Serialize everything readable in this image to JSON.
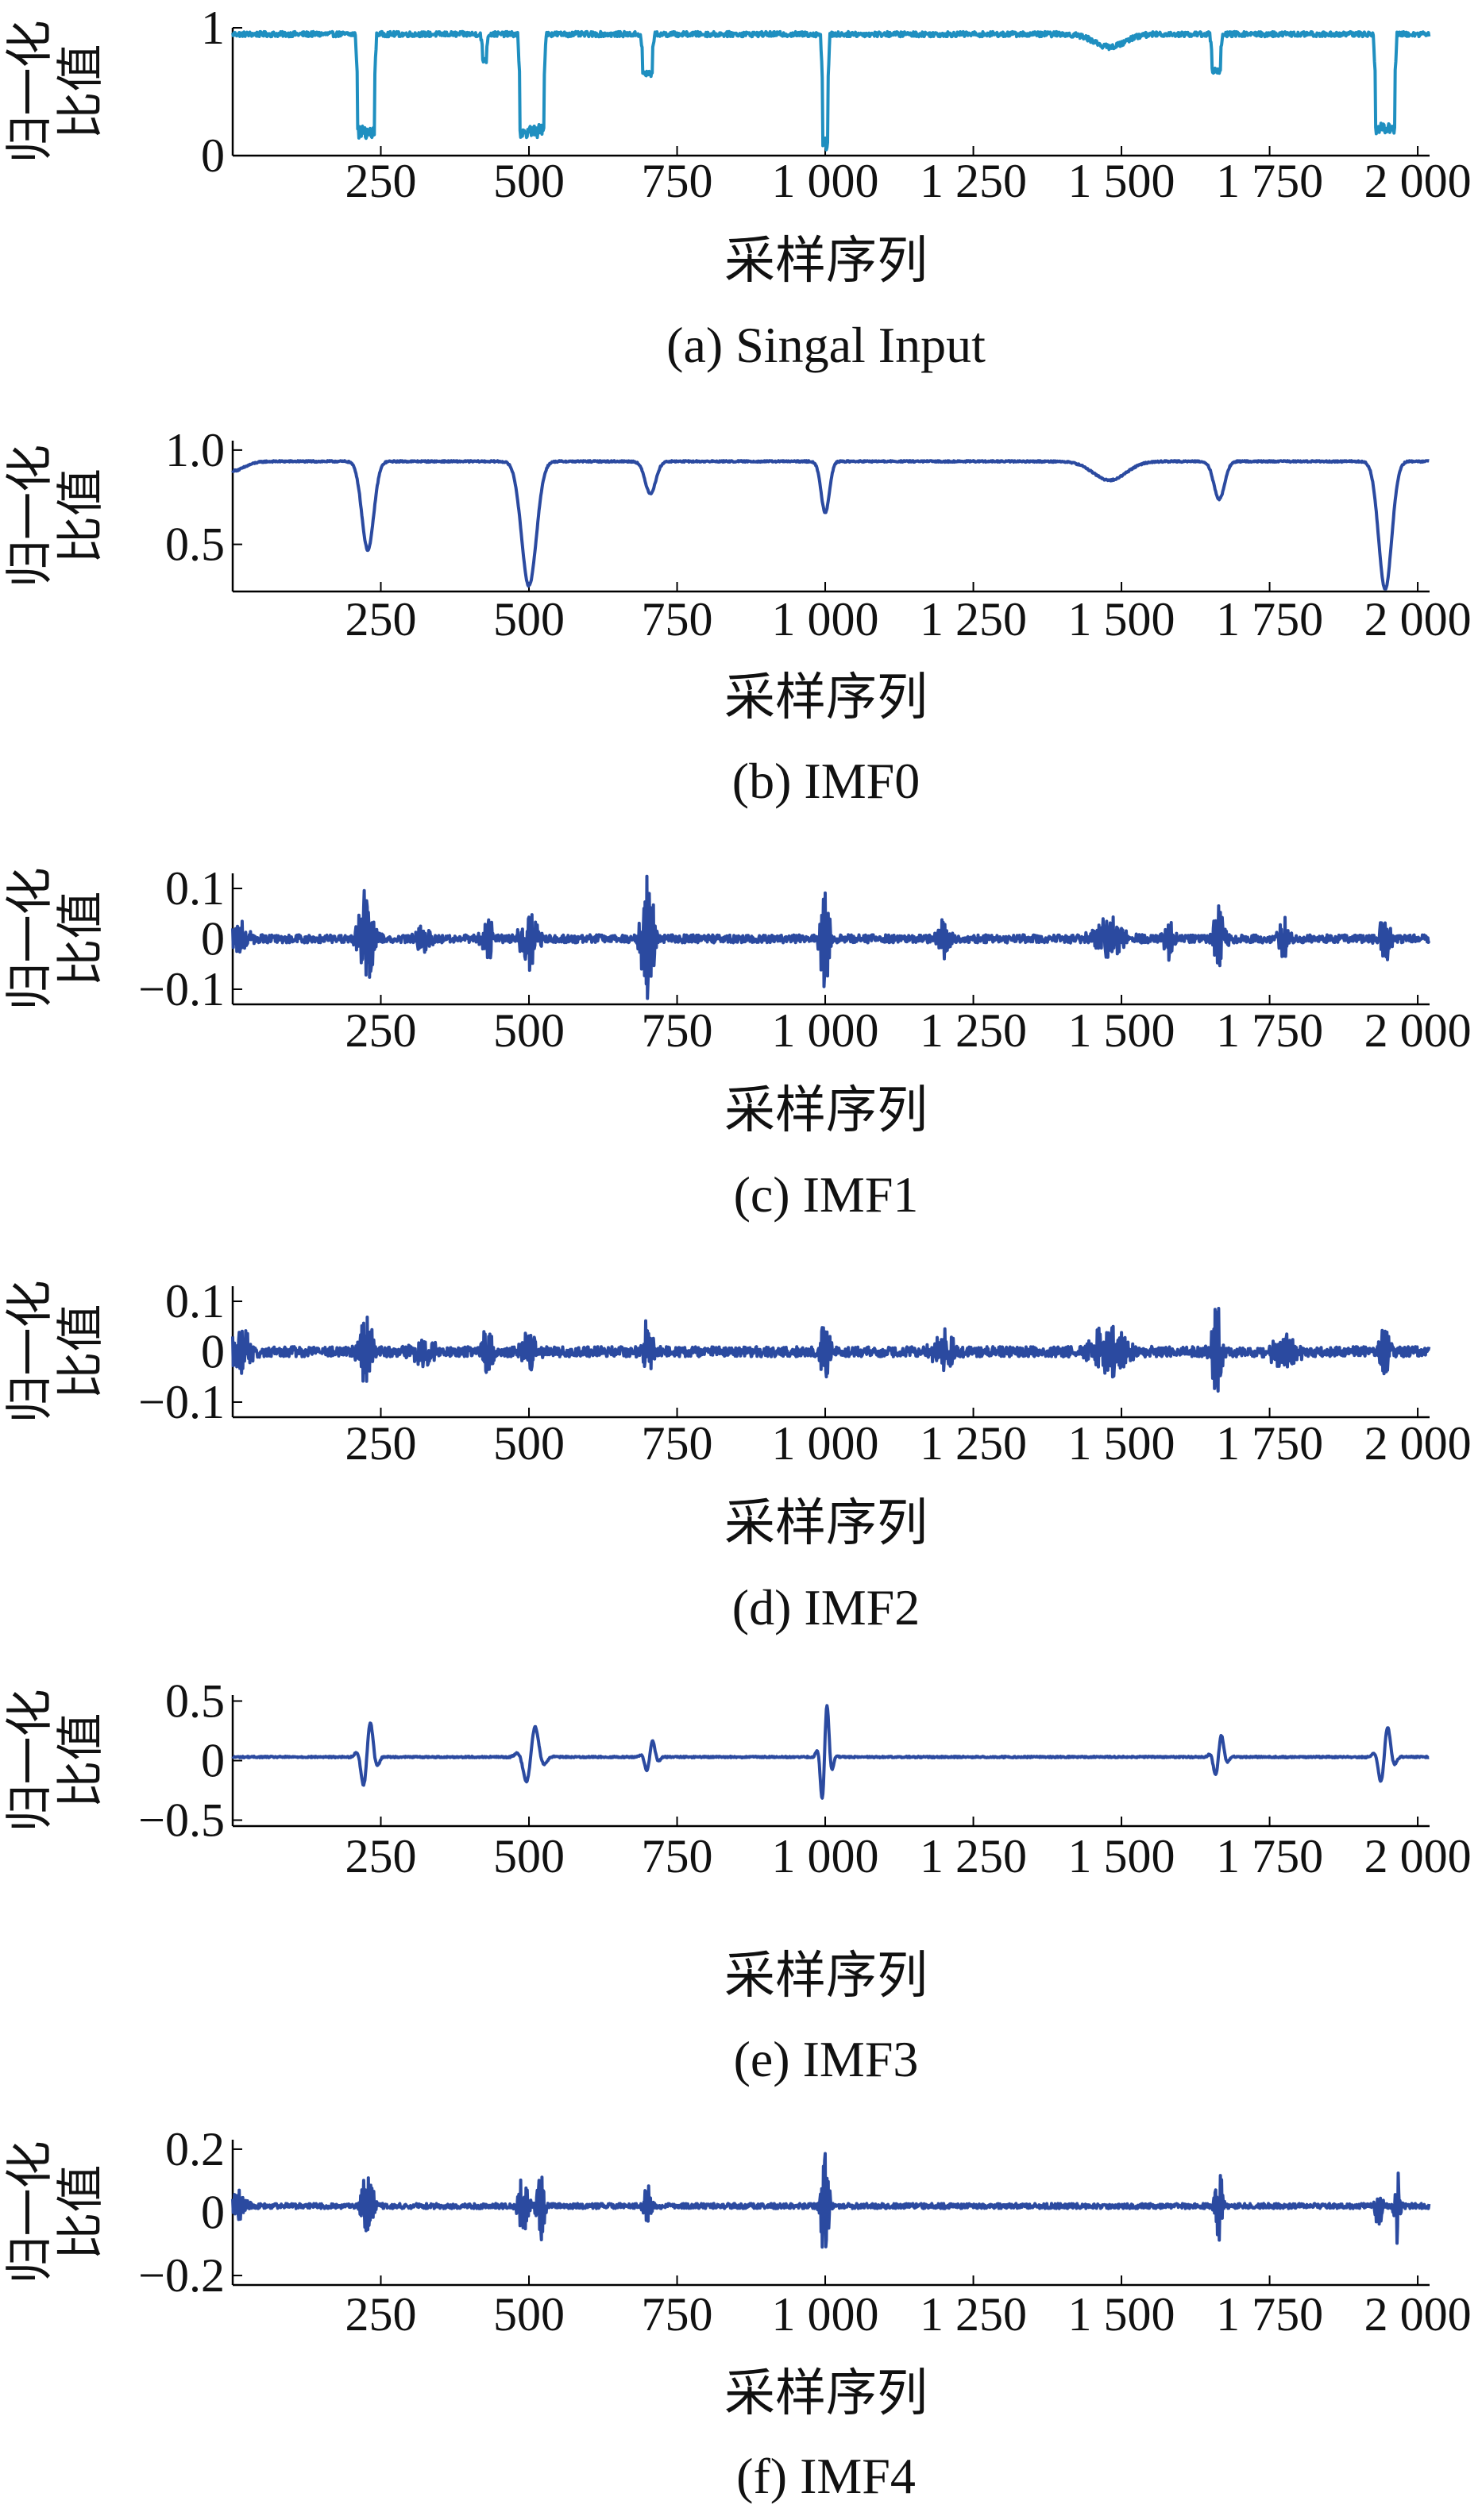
{
  "figure": {
    "background": "#ffffff",
    "axis_color": "#000000"
  },
  "chart_data": [
    {
      "type": "line",
      "caption": "(a) Singal Input",
      "xlabel": "采样序列",
      "ylabel": "归一化比值",
      "xlim": [
        0,
        2020
      ],
      "ylim": [
        0,
        1
      ],
      "xticks": [
        250,
        500,
        750,
        1000,
        1250,
        1500,
        1750,
        2000
      ],
      "xticklabels": [
        "250",
        "500",
        "750",
        "1 000",
        "1 250",
        "1 500",
        "1 750",
        "2 000"
      ],
      "yticks": [
        0,
        1
      ],
      "yticklabels": [
        "0",
        "1"
      ],
      "color": "#1f8fc0",
      "series": [
        {
          "baseline": 0.95,
          "noise": 0.02,
          "features": [
            {
              "center": 225,
              "width": 28,
              "depth": 0.8,
              "shape": "box"
            },
            {
              "center": 505,
              "width": 40,
              "depth": 0.8,
              "shape": "box"
            },
            {
              "center": 700,
              "width": 16,
              "depth": 0.32,
              "shape": "box"
            },
            {
              "center": 1000,
              "width": 8,
              "depth": 0.92,
              "shape": "box"
            },
            {
              "center": 1660,
              "width": 14,
              "depth": 0.3,
              "shape": "box"
            },
            {
              "center": 1945,
              "width": 32,
              "depth": 0.78,
              "shape": "box"
            },
            {
              "center": 425,
              "width": 6,
              "depth": 0.22,
              "shape": "box"
            },
            {
              "center": 1480,
              "width": 50,
              "depth": 0.1,
              "shape": "gauss"
            }
          ]
        }
      ]
    },
    {
      "type": "line",
      "caption": "(b) IMF0",
      "xlabel": "采样序列",
      "ylabel": "归一化比值",
      "xlim": [
        0,
        2020
      ],
      "ylim": [
        0.25,
        1.05
      ],
      "xticks": [
        250,
        500,
        750,
        1000,
        1250,
        1500,
        1750,
        2000
      ],
      "xticklabels": [
        "250",
        "500",
        "750",
        "1 000",
        "1 250",
        "1 500",
        "1 750",
        "2 000"
      ],
      "yticks": [
        0.5,
        1.0
      ],
      "yticklabels": [
        "0.5",
        "1.0"
      ],
      "color": "#2b4aa0",
      "series": [
        {
          "baseline": 0.94,
          "noise": 0.004,
          "features": [
            {
              "center": 0,
              "width": 40,
              "depth": 0.05,
              "shape": "gauss"
            },
            {
              "center": 228,
              "width": 20,
              "depth": 0.47,
              "shape": "gauss"
            },
            {
              "center": 500,
              "width": 25,
              "depth": 0.66,
              "shape": "gauss"
            },
            {
              "center": 705,
              "width": 18,
              "depth": 0.17,
              "shape": "gauss"
            },
            {
              "center": 1000,
              "width": 14,
              "depth": 0.27,
              "shape": "gauss"
            },
            {
              "center": 1480,
              "width": 55,
              "depth": 0.1,
              "shape": "gauss"
            },
            {
              "center": 1665,
              "width": 18,
              "depth": 0.2,
              "shape": "gauss"
            },
            {
              "center": 1945,
              "width": 22,
              "depth": 0.68,
              "shape": "gauss"
            }
          ]
        }
      ]
    },
    {
      "type": "line",
      "caption": "(c) IMF1",
      "xlabel": "采样序列",
      "ylabel": "归一化比值",
      "xlim": [
        0,
        2020
      ],
      "ylim": [
        -0.13,
        0.13
      ],
      "xticks": [
        250,
        500,
        750,
        1000,
        1250,
        1500,
        1750,
        2000
      ],
      "xticklabels": [
        "250",
        "500",
        "750",
        "1 000",
        "1 250",
        "1 500",
        "1 750",
        "2 000"
      ],
      "yticks": [
        -0.1,
        0,
        0.1
      ],
      "yticklabels": [
        "−0.1",
        "0",
        "0.1"
      ],
      "color": "#2b4aa0",
      "series": [
        {
          "baseline": 0.0,
          "noise": 0.008,
          "bursts": [
            {
              "center": 10,
              "width": 25,
              "amp": 0.04
            },
            {
              "center": 225,
              "width": 20,
              "amp": 0.1
            },
            {
              "center": 320,
              "width": 20,
              "amp": 0.03
            },
            {
              "center": 430,
              "width": 14,
              "amp": 0.05
            },
            {
              "center": 500,
              "width": 22,
              "amp": 0.08
            },
            {
              "center": 700,
              "width": 18,
              "amp": 0.12
            },
            {
              "center": 1000,
              "width": 12,
              "amp": 0.12
            },
            {
              "center": 1200,
              "width": 15,
              "amp": 0.04
            },
            {
              "center": 1480,
              "width": 40,
              "amp": 0.04
            },
            {
              "center": 1580,
              "width": 12,
              "amp": 0.05
            },
            {
              "center": 1665,
              "width": 14,
              "amp": 0.08
            },
            {
              "center": 1775,
              "width": 14,
              "amp": 0.05
            },
            {
              "center": 1945,
              "width": 15,
              "amp": 0.05
            }
          ]
        }
      ]
    },
    {
      "type": "line",
      "caption": "(d) IMF2",
      "xlabel": "采样序列",
      "ylabel": "归一化比值",
      "xlim": [
        0,
        2020
      ],
      "ylim": [
        -0.13,
        0.13
      ],
      "xticks": [
        250,
        500,
        750,
        1000,
        1250,
        1500,
        1750,
        2000
      ],
      "xticklabels": [
        "250",
        "500",
        "750",
        "1 000",
        "1 250",
        "1 500",
        "1 750",
        "2 000"
      ],
      "yticks": [
        -0.1,
        0,
        0.1
      ],
      "yticklabels": [
        "−0.1",
        "0",
        "0.1"
      ],
      "color": "#2b4aa0",
      "series": [
        {
          "baseline": 0.0,
          "noise": 0.01,
          "bursts": [
            {
              "center": 15,
              "width": 25,
              "amp": 0.05
            },
            {
              "center": 225,
              "width": 18,
              "amp": 0.08
            },
            {
              "center": 320,
              "width": 30,
              "amp": 0.03
            },
            {
              "center": 430,
              "width": 12,
              "amp": 0.07
            },
            {
              "center": 500,
              "width": 20,
              "amp": 0.05
            },
            {
              "center": 700,
              "width": 16,
              "amp": 0.06
            },
            {
              "center": 1000,
              "width": 12,
              "amp": 0.08
            },
            {
              "center": 1200,
              "width": 30,
              "amp": 0.04
            },
            {
              "center": 1480,
              "width": 50,
              "amp": 0.05
            },
            {
              "center": 1660,
              "width": 12,
              "amp": 0.13
            },
            {
              "center": 1775,
              "width": 30,
              "amp": 0.04
            },
            {
              "center": 1945,
              "width": 15,
              "amp": 0.05
            }
          ]
        }
      ]
    },
    {
      "type": "line",
      "caption": "(e) IMF3",
      "xlabel": "采样序列",
      "ylabel": "归一化比值",
      "xlim": [
        0,
        2020
      ],
      "ylim": [
        -0.55,
        0.55
      ],
      "xticks": [
        250,
        500,
        750,
        1000,
        1250,
        1500,
        1750,
        2000
      ],
      "xticklabels": [
        "250",
        "500",
        "750",
        "1 000",
        "1 250",
        "1 500",
        "1 750",
        "2 000"
      ],
      "yticks": [
        -0.5,
        0,
        0.5
      ],
      "yticklabels": [
        "−0.5",
        "0",
        "0.5"
      ],
      "color": "#2b4aa0",
      "series": [
        {
          "baseline": 0.03,
          "noise": 0.006,
          "wavelets": [
            {
              "center": 228,
              "width": 14,
              "amp": 0.32
            },
            {
              "center": 505,
              "width": 18,
              "amp": 0.28
            },
            {
              "center": 705,
              "width": 12,
              "amp": 0.15
            },
            {
              "center": 1000,
              "width": 10,
              "amp": 0.48
            },
            {
              "center": 1665,
              "width": 12,
              "amp": 0.2
            },
            {
              "center": 1945,
              "width": 14,
              "amp": 0.28
            }
          ]
        }
      ]
    },
    {
      "type": "line",
      "caption": "(f) IMF4",
      "xlabel": "采样序列",
      "ylabel": "归一化比值",
      "xlim": [
        0,
        2020
      ],
      "ylim": [
        -0.23,
        0.23
      ],
      "xticks": [
        250,
        500,
        750,
        1000,
        1250,
        1500,
        1750,
        2000
      ],
      "xticklabels": [
        "250",
        "500",
        "750",
        "1 000",
        "1 250",
        "1 500",
        "1 750",
        "2 000"
      ],
      "yticks": [
        -0.2,
        0,
        0.2
      ],
      "yticklabels": [
        "−0.2",
        "0",
        "0.2"
      ],
      "color": "#2b4aa0",
      "series": [
        {
          "baseline": 0.02,
          "noise": 0.008,
          "bursts": [
            {
              "center": 10,
              "width": 20,
              "amp": 0.05
            },
            {
              "center": 228,
              "width": 14,
              "amp": 0.15
            },
            {
              "center": 490,
              "width": 12,
              "amp": 0.12
            },
            {
              "center": 520,
              "width": 10,
              "amp": 0.14
            },
            {
              "center": 700,
              "width": 10,
              "amp": 0.07
            },
            {
              "center": 1000,
              "width": 10,
              "amp": 0.22
            },
            {
              "center": 1665,
              "width": 10,
              "amp": 0.12
            },
            {
              "center": 1935,
              "width": 8,
              "amp": 0.1
            },
            {
              "center": 1965,
              "width": 8,
              "amp": 0.13
            }
          ]
        }
      ]
    }
  ]
}
